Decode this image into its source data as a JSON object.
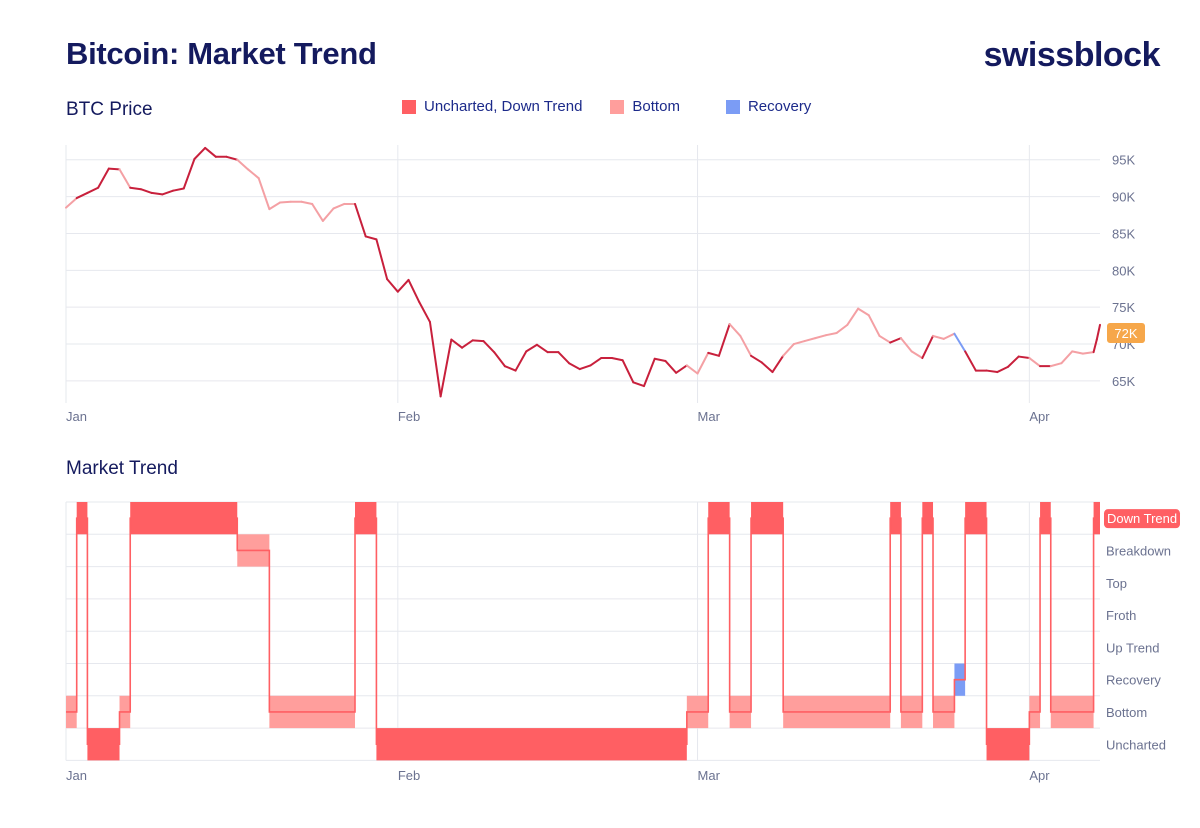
{
  "header": {
    "title": "Bitcoin: Market Trend",
    "brand": "swissblock"
  },
  "colors": {
    "down": "#ff5f63",
    "bottom": "#ff9e9c",
    "recovery": "#7b9cf5",
    "price_line": "#c8203c",
    "price_badge": "#f6a74a",
    "navy": "#141a5e"
  },
  "legend": [
    {
      "label": "Uncharted, Down Trend",
      "color": "#ff5f63"
    },
    {
      "label": "Bottom",
      "color": "#ff9e9c"
    },
    {
      "label": "Recovery",
      "color": "#7b9cf5"
    }
  ],
  "chart_data": [
    {
      "type": "line",
      "title": "BTC Price",
      "x_ticks": [
        {
          "label": "Jan",
          "day": 0
        },
        {
          "label": "Feb",
          "day": 31
        },
        {
          "label": "Mar",
          "day": 59
        },
        {
          "label": "Apr",
          "day": 90
        }
      ],
      "ylim": [
        62000,
        97000
      ],
      "y_ticks": [
        {
          "label": "95K",
          "value": 95000
        },
        {
          "label": "90K",
          "value": 90000
        },
        {
          "label": "85K",
          "value": 85000
        },
        {
          "label": "80K",
          "value": 80000
        },
        {
          "label": "75K",
          "value": 75000
        },
        {
          "label": "70K",
          "value": 70000
        },
        {
          "label": "65K",
          "value": 65000
        }
      ],
      "current_price_label": "72K",
      "current_price": 71500,
      "series": [
        {
          "days": [
            0,
            1,
            2,
            3,
            4,
            5,
            6,
            7,
            8,
            9,
            10,
            11,
            12,
            13,
            14,
            15,
            16,
            17,
            18,
            19,
            20,
            21,
            22,
            23,
            24,
            25,
            26,
            27,
            28,
            29,
            30,
            31,
            32,
            33,
            34,
            35,
            36,
            37,
            38,
            39,
            40,
            41,
            42,
            43,
            44,
            45,
            46,
            47,
            48,
            49,
            50,
            51,
            52,
            53,
            54,
            55,
            56,
            57,
            58,
            59,
            60,
            61,
            62,
            63,
            64,
            65,
            66,
            67,
            68,
            69,
            70,
            71,
            72,
            73,
            74,
            75,
            76,
            77,
            78,
            79,
            80,
            81,
            82,
            83,
            84,
            85,
            86,
            87,
            88,
            89,
            90,
            91,
            92,
            93,
            94,
            95,
            96,
            96.3,
            96.6
          ],
          "values": [
            88500,
            89800,
            90500,
            91200,
            93800,
            93700,
            91200,
            91000,
            90500,
            90300,
            90800,
            91100,
            95100,
            96600,
            95400,
            95400,
            95000,
            93700,
            92500,
            88300,
            89200,
            89300,
            89300,
            89000,
            86700,
            88400,
            89000,
            89000,
            84600,
            84200,
            78800,
            77100,
            78700,
            75700,
            73000,
            62900,
            70600,
            69500,
            70500,
            70400,
            68900,
            67000,
            66400,
            69000,
            69900,
            68900,
            68900,
            67400,
            66600,
            67100,
            68100,
            68100,
            67800,
            64800,
            64300,
            68000,
            67700,
            66100,
            67100,
            66000,
            68800,
            68400,
            72700,
            71100,
            68400,
            67500,
            66200,
            68400,
            70000,
            70400,
            70800,
            71200,
            71500,
            72600,
            74800,
            73900,
            71100,
            70200,
            70800,
            69000,
            68100,
            71100,
            70700,
            71400,
            69000,
            66400,
            66400,
            66200,
            66900,
            68300,
            68100,
            67000,
            67000,
            67400,
            69000,
            68700,
            68900,
            70600,
            72600
          ]
        }
      ]
    },
    {
      "type": "bar",
      "title": "Market Trend",
      "x_ticks": [
        {
          "label": "Jan",
          "day": 0
        },
        {
          "label": "Feb",
          "day": 31
        },
        {
          "label": "Mar",
          "day": 59
        },
        {
          "label": "Apr",
          "day": 90
        }
      ],
      "categories": [
        "Uncharted",
        "Bottom",
        "Recovery",
        "Up Trend",
        "Froth",
        "Top",
        "Breakdown",
        "Down Trend"
      ],
      "highlighted_category": "Down Trend",
      "states": [
        [
          "bottom",
          0,
          1
        ],
        [
          "down",
          1,
          2
        ],
        [
          "uncharted",
          2,
          5
        ],
        [
          "bottom",
          5,
          6
        ],
        [
          "down",
          6,
          16
        ],
        [
          "breakdown",
          16,
          19
        ],
        [
          "bottom",
          19,
          27
        ],
        [
          "down",
          27,
          29
        ],
        [
          "uncharted",
          29,
          58
        ],
        [
          "bottom",
          58,
          60
        ],
        [
          "down",
          60,
          62
        ],
        [
          "bottom",
          62,
          64
        ],
        [
          "down",
          64,
          67
        ],
        [
          "bottom",
          67,
          77
        ],
        [
          "down",
          77,
          78
        ],
        [
          "bottom",
          78,
          80
        ],
        [
          "down",
          80,
          81
        ],
        [
          "bottom",
          81,
          83
        ],
        [
          "recovery",
          83,
          84
        ],
        [
          "down",
          84,
          86
        ],
        [
          "uncharted",
          86,
          90
        ],
        [
          "bottom",
          90,
          91
        ],
        [
          "down",
          91,
          92
        ],
        [
          "bottom",
          92,
          96
        ],
        [
          "down",
          96,
          96.6
        ]
      ]
    }
  ]
}
